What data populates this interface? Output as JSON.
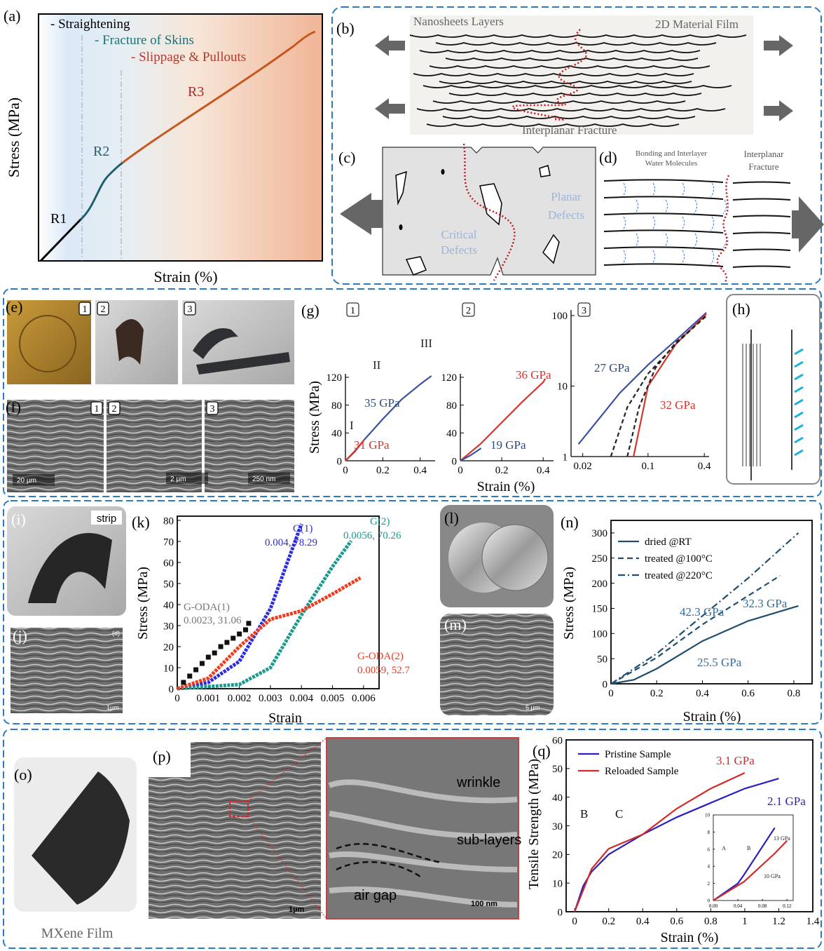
{
  "panels": {
    "a": {
      "label": "(a)",
      "notes": [
        "- Straightening",
        "- Fracture of Skins",
        "- Slippage & Pullouts"
      ],
      "regions": [
        "R1",
        "R2",
        "R3"
      ],
      "x_label": "Strain (%)",
      "y_label": "Stress (MPa)"
    },
    "b": {
      "label": "(b)",
      "texts": [
        "Nanosheets Layers",
        "2D Material Film",
        "Interplanar Fracture"
      ]
    },
    "c": {
      "label": "(c)",
      "texts": [
        [
          "Critical",
          "Defects"
        ],
        [
          "Planar",
          "Defects"
        ]
      ]
    },
    "d": {
      "label": "(d)",
      "texts": [
        [
          "Bonding and Interlayer",
          "Water Molecules"
        ],
        [
          "Interplanar",
          "Fracture"
        ]
      ]
    },
    "e": {
      "label": "(e)",
      "tags": [
        "1",
        "2",
        "3"
      ]
    },
    "f": {
      "label": "(f)",
      "tags": [
        "1",
        "2",
        "3"
      ],
      "scale_bars": [
        "20 µm",
        "2 µm",
        "250 nm"
      ]
    },
    "h": {
      "label": "(h)"
    },
    "i": {
      "label": "(i)",
      "tag": "strip"
    },
    "j": {
      "label": "(j)",
      "inset_label": "(d)",
      "scale_bar": "1µm"
    },
    "l": {
      "label": "(l)"
    },
    "m": {
      "label": "(m)",
      "scale_bar": "5 µm"
    },
    "o": {
      "label": "(o)",
      "caption": "MXene Film"
    },
    "p": {
      "label": "(p)",
      "annotations": [
        "wrinkle",
        "sub-layers",
        "air gap"
      ],
      "scale_bars": [
        "1µm",
        "100 nm"
      ]
    }
  },
  "chart_data": [
    {
      "type": "line",
      "label": "(g)",
      "tag": "1",
      "y_label": "Stress (MPa)",
      "xlim": [
        0,
        0.48
      ],
      "ylim": [
        0,
        125
      ],
      "xticks": [
        0,
        0.2,
        0.4
      ],
      "yticks": [
        0,
        40,
        80,
        120
      ],
      "series": [
        {
          "color": "#3a4fa8",
          "x": [
            0,
            0.05,
            0.1,
            0.2,
            0.3,
            0.4,
            0.46
          ],
          "values": [
            0,
            13,
            30,
            60,
            88,
            110,
            122
          ]
        },
        {
          "color": "#d9342b",
          "x": [
            0,
            0.05,
            0.1
          ],
          "values": [
            0,
            14,
            30
          ]
        }
      ],
      "annotations": [
        {
          "text": "35 GPa",
          "color": "#2c4a7a"
        },
        {
          "text": "31 GPa",
          "color": "#d9342b"
        },
        {
          "text": "I",
          "color": "#222222"
        },
        {
          "text": "II",
          "color": "#222222"
        },
        {
          "text": "III",
          "color": "#222222"
        }
      ]
    },
    {
      "type": "line",
      "tag": "2",
      "x_label": "Strain (%)",
      "xlim": [
        0,
        0.45
      ],
      "ylim": [
        0,
        125
      ],
      "xticks": [
        0,
        0.2,
        0.4
      ],
      "yticks": [
        0,
        40,
        80,
        120
      ],
      "series": [
        {
          "color": "#d9342b",
          "x": [
            0,
            0.1,
            0.2,
            0.3,
            0.4,
            0.41
          ],
          "values": [
            0,
            25,
            55,
            85,
            113,
            118
          ]
        },
        {
          "color": "#3a4fa8",
          "x": [
            0,
            0.05,
            0.1
          ],
          "values": [
            0,
            8,
            18
          ]
        }
      ],
      "annotations": [
        {
          "text": "36 GPa",
          "color": "#d9342b"
        },
        {
          "text": "19 GPa",
          "color": "#2c4a7a"
        }
      ]
    },
    {
      "type": "line",
      "tag": "3",
      "log": true,
      "xlim": [
        0.015,
        0.45
      ],
      "ylim": [
        1,
        120
      ],
      "xticks": [
        0.02,
        0.1,
        0.4
      ],
      "yticks": [
        1,
        10,
        100
      ],
      "series": [
        {
          "color": "#3a4fa8",
          "x": [
            0.018,
            0.05,
            0.1,
            0.2,
            0.42
          ],
          "values": [
            1.5,
            8,
            20,
            45,
            110
          ]
        },
        {
          "color": "#d9342b",
          "x": [
            0.07,
            0.1,
            0.2,
            0.42
          ],
          "values": [
            1,
            10,
            40,
            105
          ]
        },
        {
          "color": "#222222",
          "dash": true,
          "x": [
            0.04,
            0.06,
            0.1,
            0.2,
            0.42
          ],
          "values": [
            1,
            5,
            15,
            40,
            100
          ]
        },
        {
          "color": "#222222",
          "dash": true,
          "x": [
            0.06,
            0.08,
            0.12,
            0.2,
            0.42
          ],
          "values": [
            1,
            5,
            18,
            42,
            98
          ]
        }
      ],
      "annotations": [
        {
          "text": "27 GPa",
          "color": "#2c4a7a"
        },
        {
          "text": "32 GPa",
          "color": "#d9342b"
        }
      ]
    },
    {
      "type": "line",
      "label": "(k)",
      "x_label": "Strain",
      "y_label": "Stress (MPa)",
      "xlim": [
        0,
        0.0065
      ],
      "ylim": [
        0,
        82
      ],
      "xticks": [
        0,
        0.001,
        0.002,
        0.003,
        0.004,
        0.005,
        0.006
      ],
      "yticks": [
        0,
        10,
        20,
        30,
        40,
        50,
        60,
        70,
        80
      ],
      "series": [
        {
          "color": "#2b2be0",
          "marker": "triangle",
          "x": [
            0,
            0.001,
            0.002,
            0.003,
            0.004
          ],
          "values": [
            0,
            3,
            13,
            38,
            78.29
          ]
        },
        {
          "color": "#1a9a8e",
          "marker": "triangle",
          "x": [
            0,
            0.002,
            0.003,
            0.004,
            0.005,
            0.0056
          ],
          "values": [
            0,
            2,
            10,
            35,
            58,
            70.26
          ]
        },
        {
          "color": "#f03a1e",
          "marker": "circle",
          "x": [
            0,
            0.001,
            0.002,
            0.003,
            0.004,
            0.005,
            0.0059
          ],
          "values": [
            0,
            5,
            20,
            33,
            37,
            45,
            52.7
          ]
        },
        {
          "color": "#111111",
          "marker": "square",
          "x": [
            0.0002,
            0.0004,
            0.0006,
            0.0008,
            0.001,
            0.0012,
            0.0014,
            0.0016,
            0.0018,
            0.002,
            0.0022,
            0.0023
          ],
          "values": [
            3,
            6,
            9,
            12,
            15,
            17,
            20,
            22,
            24,
            26,
            28,
            31.06
          ]
        }
      ],
      "annotations": [
        {
          "text": "G(1)",
          "color": "#2b2be0"
        },
        {
          "text": "0.004, 78.29",
          "color": "#2b2be0"
        },
        {
          "text": "G(2)",
          "color": "#1a9a8e"
        },
        {
          "text": "0.0056, 70.26",
          "color": "#1a9a8e"
        },
        {
          "text": "G-ODA(1)",
          "color": "#777777"
        },
        {
          "text": "0.0023, 31.06",
          "color": "#777777"
        },
        {
          "text": "G-ODA(2)",
          "color": "#f03a1e"
        },
        {
          "text": "0.0059, 52.7",
          "color": "#f03a1e"
        }
      ]
    },
    {
      "type": "line",
      "label": "(n)",
      "x_label": "Strain (%)",
      "y_label": "Stress (MPa)",
      "xlim": [
        0,
        0.88
      ],
      "ylim": [
        0,
        325
      ],
      "xticks": [
        0,
        0.2,
        0.4,
        0.6,
        0.8
      ],
      "yticks": [
        0,
        50,
        100,
        150,
        200,
        250,
        300
      ],
      "legend": "upper left",
      "series": [
        {
          "name": "dried @RT",
          "color": "#1f4e6e",
          "linestyle": "solid",
          "x": [
            0,
            0.1,
            0.2,
            0.4,
            0.6,
            0.82
          ],
          "values": [
            0,
            8,
            30,
            85,
            125,
            155
          ]
        },
        {
          "name": "treated @100°C",
          "color": "#1f4e6e",
          "linestyle": "dash",
          "x": [
            0,
            0.2,
            0.4,
            0.6,
            0.74
          ],
          "values": [
            0,
            52,
            118,
            175,
            215
          ]
        },
        {
          "name": "treated @220°C",
          "color": "#1f4e6e",
          "linestyle": "dashdot",
          "x": [
            0,
            0.2,
            0.4,
            0.6,
            0.82
          ],
          "values": [
            0,
            60,
            135,
            210,
            300
          ]
        }
      ],
      "annotations": [
        {
          "text": "42.3 GPa",
          "color": "#2c6fa8"
        },
        {
          "text": "32.3 GPa",
          "color": "#2c6fa8"
        },
        {
          "text": "25.5 GPa",
          "color": "#2c6fa8"
        }
      ]
    },
    {
      "type": "line",
      "label": "(q)",
      "x_label": "Strain (%)",
      "y_label": "Tensile Strength (MPa)",
      "xlim": [
        -0.05,
        1.4
      ],
      "ylim": [
        0,
        60
      ],
      "xticks": [
        0,
        0.2,
        0.4,
        0.6,
        0.8,
        1,
        1.2,
        1.4
      ],
      "yticks": [
        0,
        10,
        20,
        30,
        40,
        50,
        60
      ],
      "legend": "upper left",
      "series": [
        {
          "name": "Pristine Sample",
          "color": "#2a1fc0",
          "x": [
            0,
            0.05,
            0.1,
            0.2,
            0.4,
            0.6,
            0.8,
            1.0,
            1.2
          ],
          "values": [
            0,
            9,
            14,
            20,
            27,
            33,
            38,
            43,
            46.5
          ]
        },
        {
          "name": "Reloaded Sample",
          "color": "#d12a2a",
          "x": [
            0,
            0.1,
            0.2,
            0.4,
            0.6,
            0.8,
            1.0
          ],
          "values": [
            0,
            15,
            22,
            27,
            36,
            43,
            48.5
          ]
        }
      ],
      "annotations": [
        {
          "text": "3.1 GPa",
          "color": "#d12a2a"
        },
        {
          "text": "2.1 GPa",
          "color": "#2a1fc0"
        },
        {
          "text": "B",
          "color": "#111111"
        },
        {
          "text": "C",
          "color": "#111111"
        }
      ]
    },
    {
      "type": "line",
      "xlim": [
        0,
        0.13
      ],
      "ylim": [
        0,
        10
      ],
      "xticks": [
        {
          "value": 0,
          "label": "0.00"
        },
        0.04,
        0.08,
        0.12
      ],
      "yticks": [
        0,
        2,
        4,
        6,
        8,
        10
      ],
      "series": [
        {
          "color": "#2a1fc0",
          "x": [
            0,
            0.04,
            0.05,
            0.1
          ],
          "values": [
            0,
            2,
            3,
            8.5
          ]
        },
        {
          "color": "#d12a2a",
          "x": [
            0,
            0.05,
            0.1,
            0.12
          ],
          "values": [
            0,
            2.2,
            5.5,
            7
          ]
        }
      ],
      "annotations": [
        {
          "text": "A",
          "color": "#111111"
        },
        {
          "text": "B",
          "color": "#111111"
        },
        {
          "text": "13 GPa",
          "color": "#111111"
        },
        {
          "text": "10 GPa",
          "color": "#111111"
        }
      ]
    }
  ]
}
